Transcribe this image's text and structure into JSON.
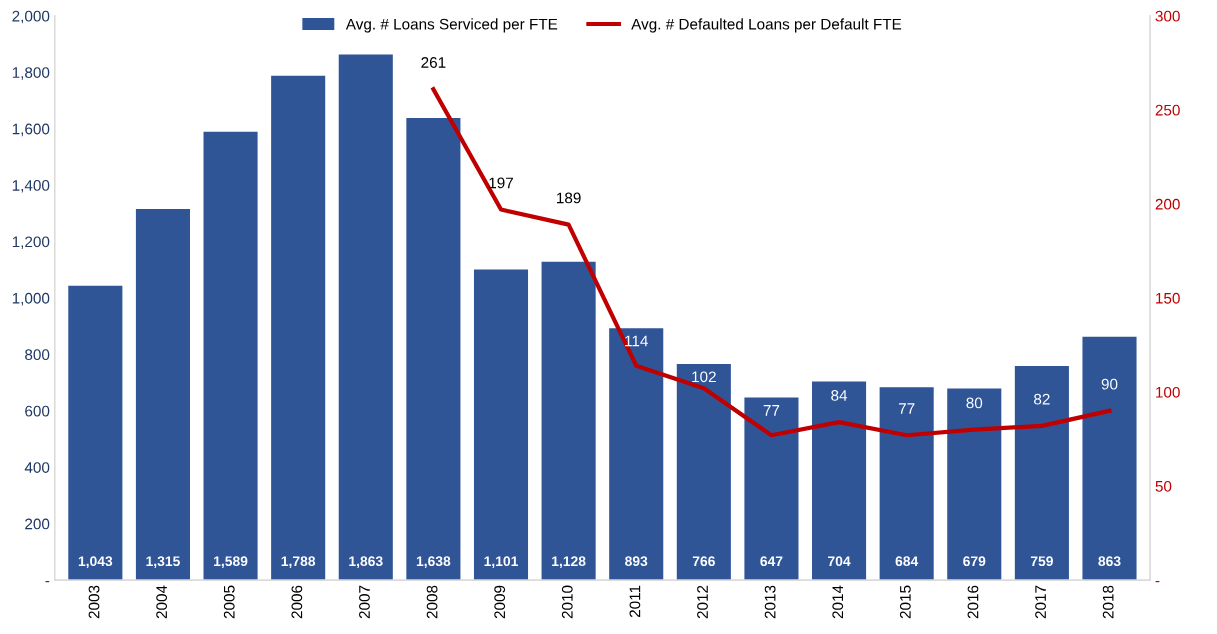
{
  "chart_data": {
    "type": "bar",
    "categories": [
      "2003",
      "2004",
      "2005",
      "2006",
      "2007",
      "2008",
      "2009",
      "2010",
      "2011",
      "2012",
      "2013",
      "2014",
      "2015",
      "2016",
      "2017",
      "2018"
    ],
    "series": [
      {
        "name": "Avg. # Loans Serviced per FTE",
        "color": "#2f5597",
        "values": [
          1043,
          1315,
          1589,
          1788,
          1863,
          1638,
          1101,
          1128,
          893,
          766,
          647,
          704,
          684,
          679,
          759,
          863
        ],
        "value_labels": [
          "1,043",
          "1,315",
          "1,589",
          "1,788",
          "1,863",
          "1,638",
          "1,101",
          "1,128",
          "893",
          "766",
          "647",
          "704",
          "684",
          "679",
          "759",
          "863"
        ]
      },
      {
        "name": "Avg. # Defaulted Loans per Default FTE",
        "type": "line",
        "axis": "y2",
        "color": "#c00000",
        "values": [
          null,
          null,
          null,
          null,
          null,
          261,
          197,
          189,
          114,
          102,
          77,
          84,
          77,
          80,
          82,
          90
        ],
        "value_labels": [
          null,
          null,
          null,
          null,
          null,
          "261",
          "197",
          "189",
          "114",
          "102",
          "77",
          "84",
          "77",
          "80",
          "82",
          "90"
        ]
      }
    ],
    "ylim": [
      0,
      2000
    ],
    "yticks": [
      {
        "value": 0,
        "label": "-"
      },
      {
        "value": 200,
        "label": "200"
      },
      {
        "value": 400,
        "label": "400"
      },
      {
        "value": 600,
        "label": "600"
      },
      {
        "value": 800,
        "label": "800"
      },
      {
        "value": 1000,
        "label": "1,000"
      },
      {
        "value": 1200,
        "label": "1,200"
      },
      {
        "value": 1400,
        "label": "1,400"
      },
      {
        "value": 1600,
        "label": "1,600"
      },
      {
        "value": 1800,
        "label": "1,800"
      },
      {
        "value": 2000,
        "label": "2,000"
      }
    ],
    "y2lim": [
      0,
      300
    ],
    "y2ticks": [
      {
        "value": 0,
        "label": "-"
      },
      50,
      100,
      150,
      200,
      250,
      300
    ],
    "legend": "top",
    "grid": false,
    "marker": "none",
    "line_style": "solid"
  }
}
